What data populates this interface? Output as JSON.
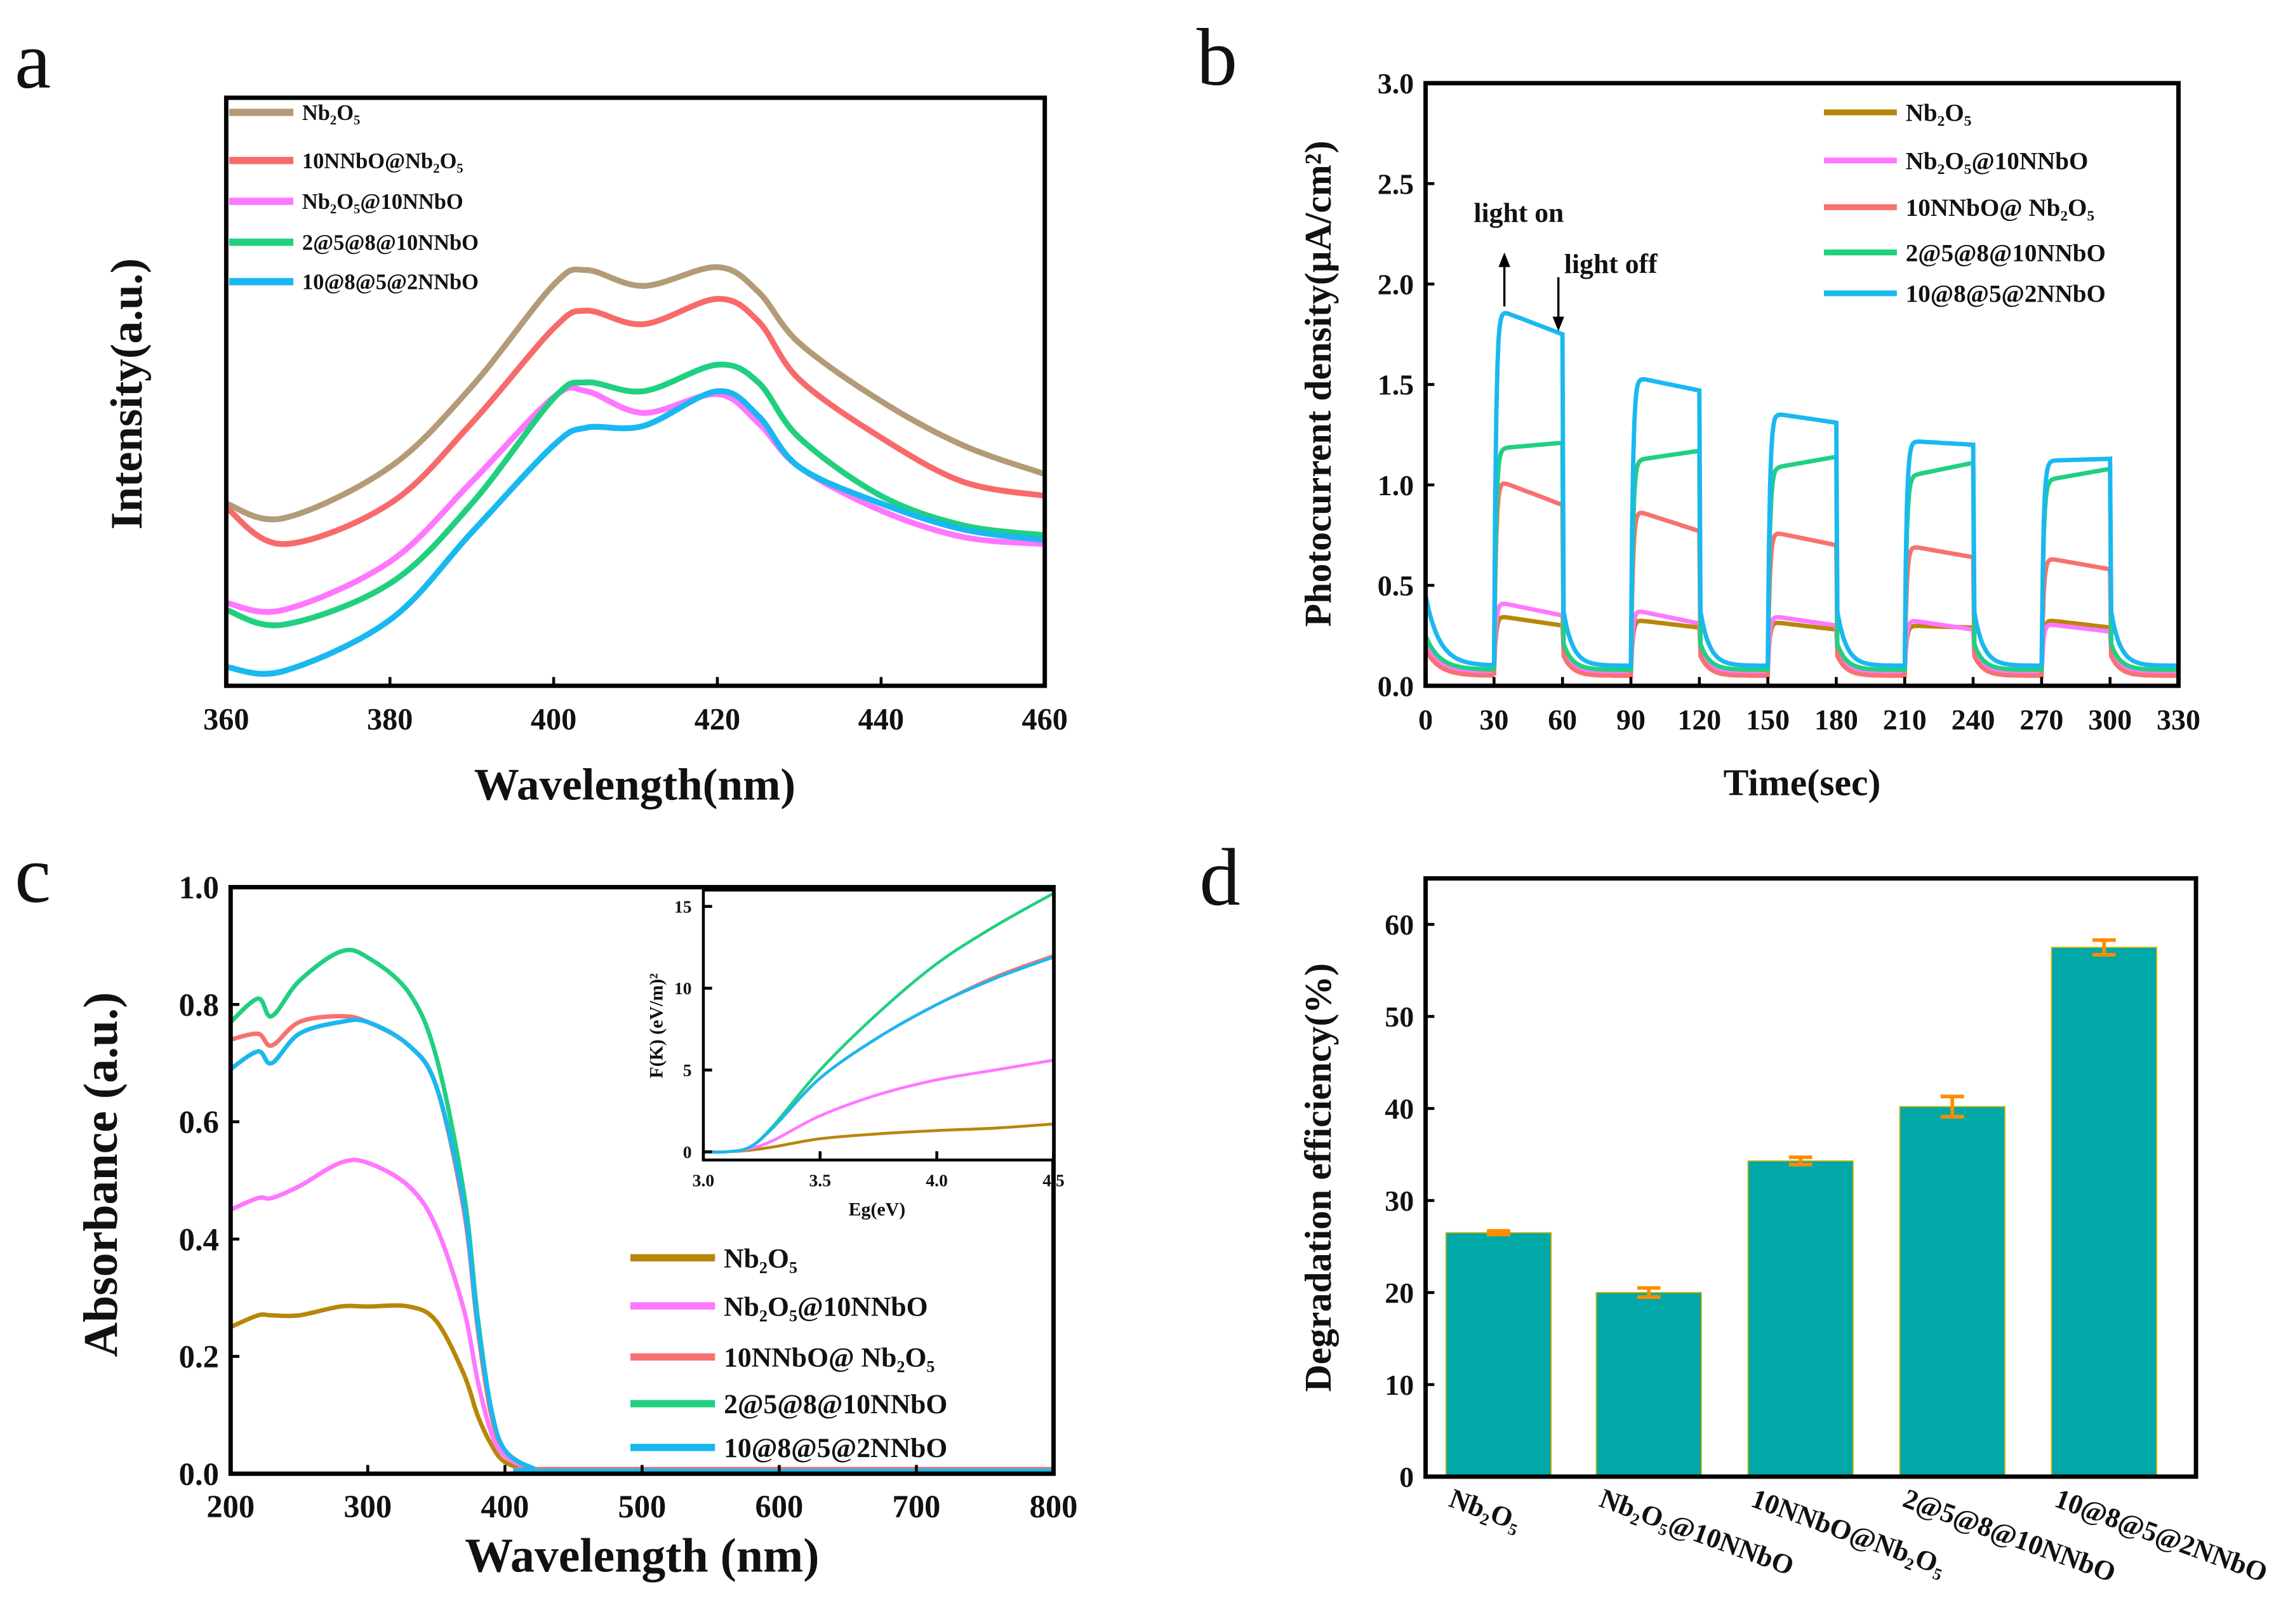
{
  "panel_labels": [
    "a",
    "b",
    "c",
    "d"
  ],
  "chart_data": [
    {
      "type": "line",
      "panel": "a",
      "xlabel": "Wavelength(nm)",
      "ylabel": "Intensity(a.u.)",
      "xlim": [
        360,
        460
      ],
      "ylim": [
        0,
        100
      ],
      "x_ticks": [
        "360",
        "380",
        "400",
        "420",
        "440",
        "460"
      ],
      "y_ticks": [],
      "grid": false,
      "legend_placement": "top-left",
      "x": [
        360,
        367,
        380,
        390,
        400,
        404,
        411,
        420,
        425,
        430,
        440,
        450,
        460
      ],
      "series": [
        {
          "name": "Nb₂O₅",
          "color": "#b39b78",
          "values": [
            31.0,
            28.5,
            37.2,
            50.9,
            68.2,
            70.7,
            68.0,
            71.2,
            67.0,
            58.3,
            48.4,
            40.9,
            36.0
          ]
        },
        {
          "name": "10NNbO@Nb₂O₅",
          "color": "#f86a6a",
          "values": [
            30.3,
            24.1,
            31.0,
            44.7,
            60.8,
            63.8,
            61.5,
            65.8,
            62.0,
            52.1,
            42.2,
            34.7,
            32.3
          ]
        },
        {
          "name": "Nb₂O₅@10NNbO",
          "color": "#ff77ff",
          "values": [
            14.1,
            12.9,
            21.1,
            34.7,
            49.1,
            50.1,
            46.4,
            49.6,
            44.7,
            37.2,
            29.8,
            25.3,
            24.1
          ]
        },
        {
          "name": "2@5@8@10NNbO",
          "color": "#20d080",
          "values": [
            12.9,
            10.4,
            17.4,
            31.0,
            48.9,
            51.6,
            50.1,
            54.6,
            51.6,
            42.2,
            32.3,
            27.3,
            25.6
          ]
        },
        {
          "name": "10@8@5@2NNbO",
          "color": "#1ab8f0",
          "values": [
            3.2,
            2.5,
            11.2,
            26.1,
            40.9,
            43.9,
            44.2,
            50.1,
            45.9,
            37.2,
            31.0,
            26.6,
            24.8
          ]
        }
      ]
    },
    {
      "type": "line",
      "panel": "b",
      "xlabel": "Time(sec)",
      "ylabel": "Photocurrent density(μA/cm²)",
      "xlim": [
        0,
        330
      ],
      "ylim": [
        0,
        3
      ],
      "x_ticks": [
        "0",
        "30",
        "60",
        "90",
        "120",
        "150",
        "180",
        "210",
        "240",
        "270",
        "300",
        "330"
      ],
      "y_ticks": [
        "0.0",
        "0.5",
        "1.0",
        "1.5",
        "2.0",
        "2.5",
        "3.0"
      ],
      "grid": false,
      "legend_placement": "top-right",
      "annotations": [
        "light on",
        "light off"
      ],
      "light_on_times": [
        30,
        90,
        150,
        210,
        270
      ],
      "light_off_times": [
        60,
        120,
        180,
        240,
        300
      ],
      "series": [
        {
          "name": "Nb₂O₅",
          "color": "#b8860b",
          "dark": [
            0.2,
            0.07
          ],
          "on_cycles": [
            [
              0.35,
              0.3
            ],
            [
              0.33,
              0.29
            ],
            [
              0.32,
              0.28
            ],
            [
              0.3,
              0.29
            ],
            [
              0.33,
              0.29
            ]
          ]
        },
        {
          "name": "Nb₂O₅@10NNbO",
          "color": "#ff77ff",
          "dark": [
            0.2,
            0.07
          ],
          "on_cycles": [
            [
              0.42,
              0.35
            ],
            [
              0.38,
              0.31
            ],
            [
              0.35,
              0.3
            ],
            [
              0.33,
              0.28
            ],
            [
              0.31,
              0.27
            ]
          ]
        },
        {
          "name": "10NNbO@ Nb₂O₅",
          "color": "#f87171",
          "dark": [
            0.18,
            0.05
          ],
          "on_cycles": [
            [
              1.03,
              0.9
            ],
            [
              0.88,
              0.77
            ],
            [
              0.77,
              0.7
            ],
            [
              0.7,
              0.64
            ],
            [
              0.64,
              0.58
            ]
          ]
        },
        {
          "name": "2@5@8@10NNbO",
          "color": "#20d080",
          "dark": [
            0.25,
            0.08
          ],
          "on_cycles": [
            [
              1.18,
              1.21
            ],
            [
              1.12,
              1.17
            ],
            [
              1.08,
              1.14
            ],
            [
              1.04,
              1.11
            ],
            [
              1.02,
              1.08
            ]
          ]
        },
        {
          "name": "10@8@5@2NNbO",
          "color": "#1ab8f0",
          "dark": [
            0.45,
            0.1
          ],
          "on_cycles": [
            [
              1.88,
              1.75
            ],
            [
              1.54,
              1.47
            ],
            [
              1.36,
              1.31
            ],
            [
              1.22,
              1.2
            ],
            [
              1.12,
              1.13
            ]
          ]
        }
      ]
    },
    {
      "type": "line",
      "panel": "c",
      "xlabel": "Wavelength (nm)",
      "ylabel": "Absorbance (a.u.)",
      "xlim": [
        200,
        800
      ],
      "ylim": [
        0,
        1
      ],
      "x_ticks": [
        "200",
        "300",
        "400",
        "500",
        "600",
        "700",
        "800"
      ],
      "y_ticks": [
        "0.0",
        "0.2",
        "0.4",
        "0.6",
        "0.8",
        "1.0"
      ],
      "grid": false,
      "legend_placement": "bottom-right",
      "x": [
        200,
        220,
        230,
        250,
        280,
        300,
        330,
        350,
        370,
        380,
        390,
        400,
        420,
        440,
        800
      ],
      "series": [
        {
          "name": "Nb₂O₅",
          "color": "#b8860b",
          "values": [
            0.25,
            0.27,
            0.27,
            0.27,
            0.285,
            0.285,
            0.285,
            0.26,
            0.17,
            0.1,
            0.05,
            0.02,
            0.005,
            0.003,
            0.003
          ]
        },
        {
          "name": "Nb₂O₅@10NNbO",
          "color": "#ff77ff",
          "values": [
            0.45,
            0.47,
            0.47,
            0.49,
            0.53,
            0.53,
            0.49,
            0.42,
            0.28,
            0.16,
            0.07,
            0.03,
            0.008,
            0.005,
            0.005
          ]
        },
        {
          "name": "10NNbO@ Nb₂O₅",
          "color": "#f87171",
          "values": [
            0.74,
            0.75,
            0.73,
            0.77,
            0.78,
            0.77,
            0.73,
            0.66,
            0.45,
            0.25,
            0.1,
            0.04,
            0.01,
            0.008,
            0.008
          ]
        },
        {
          "name": "2@5@8@10NNbO",
          "color": "#20d080",
          "values": [
            0.77,
            0.81,
            0.78,
            0.84,
            0.89,
            0.88,
            0.82,
            0.71,
            0.48,
            0.27,
            0.11,
            0.04,
            0.01,
            0.005,
            0.005
          ]
        },
        {
          "name": "10@8@5@2NNbO",
          "color": "#1ab8f0",
          "values": [
            0.69,
            0.72,
            0.7,
            0.75,
            0.77,
            0.77,
            0.73,
            0.66,
            0.46,
            0.26,
            0.11,
            0.04,
            0.01,
            0.005,
            0.005
          ]
        }
      ],
      "inset": {
        "type": "line",
        "xlabel": "Eg(eV)",
        "ylabel": "F(K) (eV/m)²",
        "xlim": [
          3.0,
          4.5
        ],
        "ylim": [
          -0.5,
          16
        ],
        "x_ticks": [
          "3.0",
          "3.5",
          "4.0",
          "4.5"
        ],
        "y_ticks": [
          "0",
          "5",
          "10",
          "15"
        ],
        "x": [
          3.0,
          3.1,
          3.2,
          3.3,
          3.5,
          3.75,
          4.0,
          4.25,
          4.5
        ],
        "series": [
          {
            "color": "#b8860b",
            "values": [
              0,
              0,
              0.1,
              0.3,
              0.8,
              1.1,
              1.3,
              1.45,
              1.7
            ]
          },
          {
            "color": "#ff77ff",
            "values": [
              0,
              0,
              0.2,
              0.7,
              2.2,
              3.5,
              4.4,
              5.0,
              5.6
            ]
          },
          {
            "color": "#f87171",
            "values": [
              0,
              0,
              0.3,
              1.5,
              4.5,
              7.0,
              9.0,
              10.7,
              12.0
            ]
          },
          {
            "color": "#20d080",
            "values": [
              0,
              0,
              0.3,
              1.6,
              5.0,
              8.5,
              11.5,
              13.8,
              15.8
            ]
          },
          {
            "color": "#1ab8f0",
            "values": [
              0,
              0,
              0.3,
              1.5,
              4.5,
              7.0,
              9.0,
              10.6,
              11.9
            ]
          }
        ]
      }
    },
    {
      "type": "bar",
      "panel": "d",
      "xlabel": "",
      "ylabel": "Degradation efficiency(%)",
      "ylim": [
        0,
        65
      ],
      "y_ticks": [
        "0",
        "10",
        "20",
        "30",
        "40",
        "50",
        "60"
      ],
      "grid": false,
      "categories": [
        "Nb₂O₅",
        "Nb₂O₅@10NNbO",
        "10NNbO@Nb₂O₅",
        "2@5@8@10NNbO",
        "10@8@5@2NNbO"
      ],
      "values": [
        26.5,
        20.0,
        34.3,
        40.2,
        57.5
      ],
      "errors": [
        0.2,
        0.5,
        0.4,
        1.1,
        0.8
      ],
      "bar_color": "#00a8a8",
      "error_color": "#ff8c00"
    }
  ]
}
